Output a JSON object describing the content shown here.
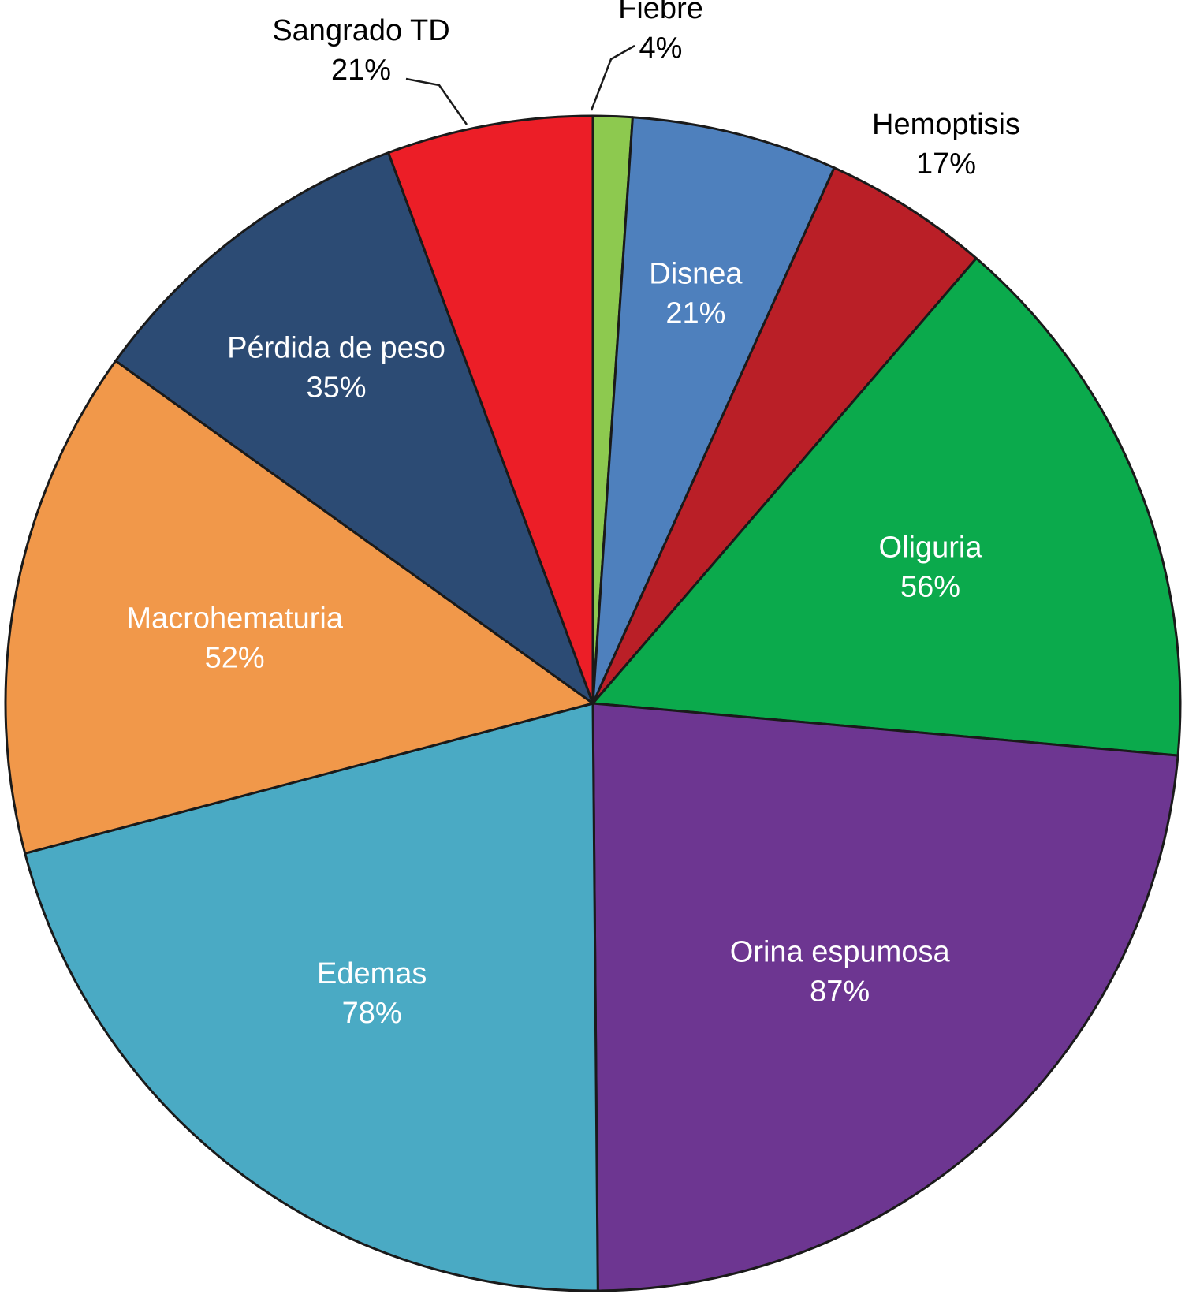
{
  "chart_data": {
    "type": "pie",
    "title": "",
    "slices": [
      {
        "label": "Fiebre",
        "value": 4,
        "value_label": "4%",
        "color": "#8DC94F",
        "label_position": "outside"
      },
      {
        "label": "Disnea",
        "value": 21,
        "value_label": "21%",
        "color": "#4E80BD",
        "label_position": "inside"
      },
      {
        "label": "Hemoptisis",
        "value": 17,
        "value_label": "17%",
        "color": "#BA1F27",
        "label_position": "outside"
      },
      {
        "label": "Oliguria",
        "value": 56,
        "value_label": "56%",
        "color": "#0BAA4C",
        "label_position": "inside"
      },
      {
        "label": "Orina espumosa",
        "value": 87,
        "value_label": "87%",
        "color": "#6D3691",
        "label_position": "inside"
      },
      {
        "label": "Edemas",
        "value": 78,
        "value_label": "78%",
        "color": "#4AAAC4",
        "label_position": "inside"
      },
      {
        "label": "Macrohematuria",
        "value": 52,
        "value_label": "52%",
        "color": "#F1984A",
        "label_position": "inside"
      },
      {
        "label": "Pérdida de peso",
        "value": 35,
        "value_label": "35%",
        "color": "#2C4B74",
        "label_position": "inside"
      },
      {
        "label": "Sangrado TD",
        "value": 21,
        "value_label": "21%",
        "color": "#EC1E27",
        "label_position": "outside"
      }
    ],
    "start": "top",
    "direction": "clockwise",
    "legend": "none"
  }
}
